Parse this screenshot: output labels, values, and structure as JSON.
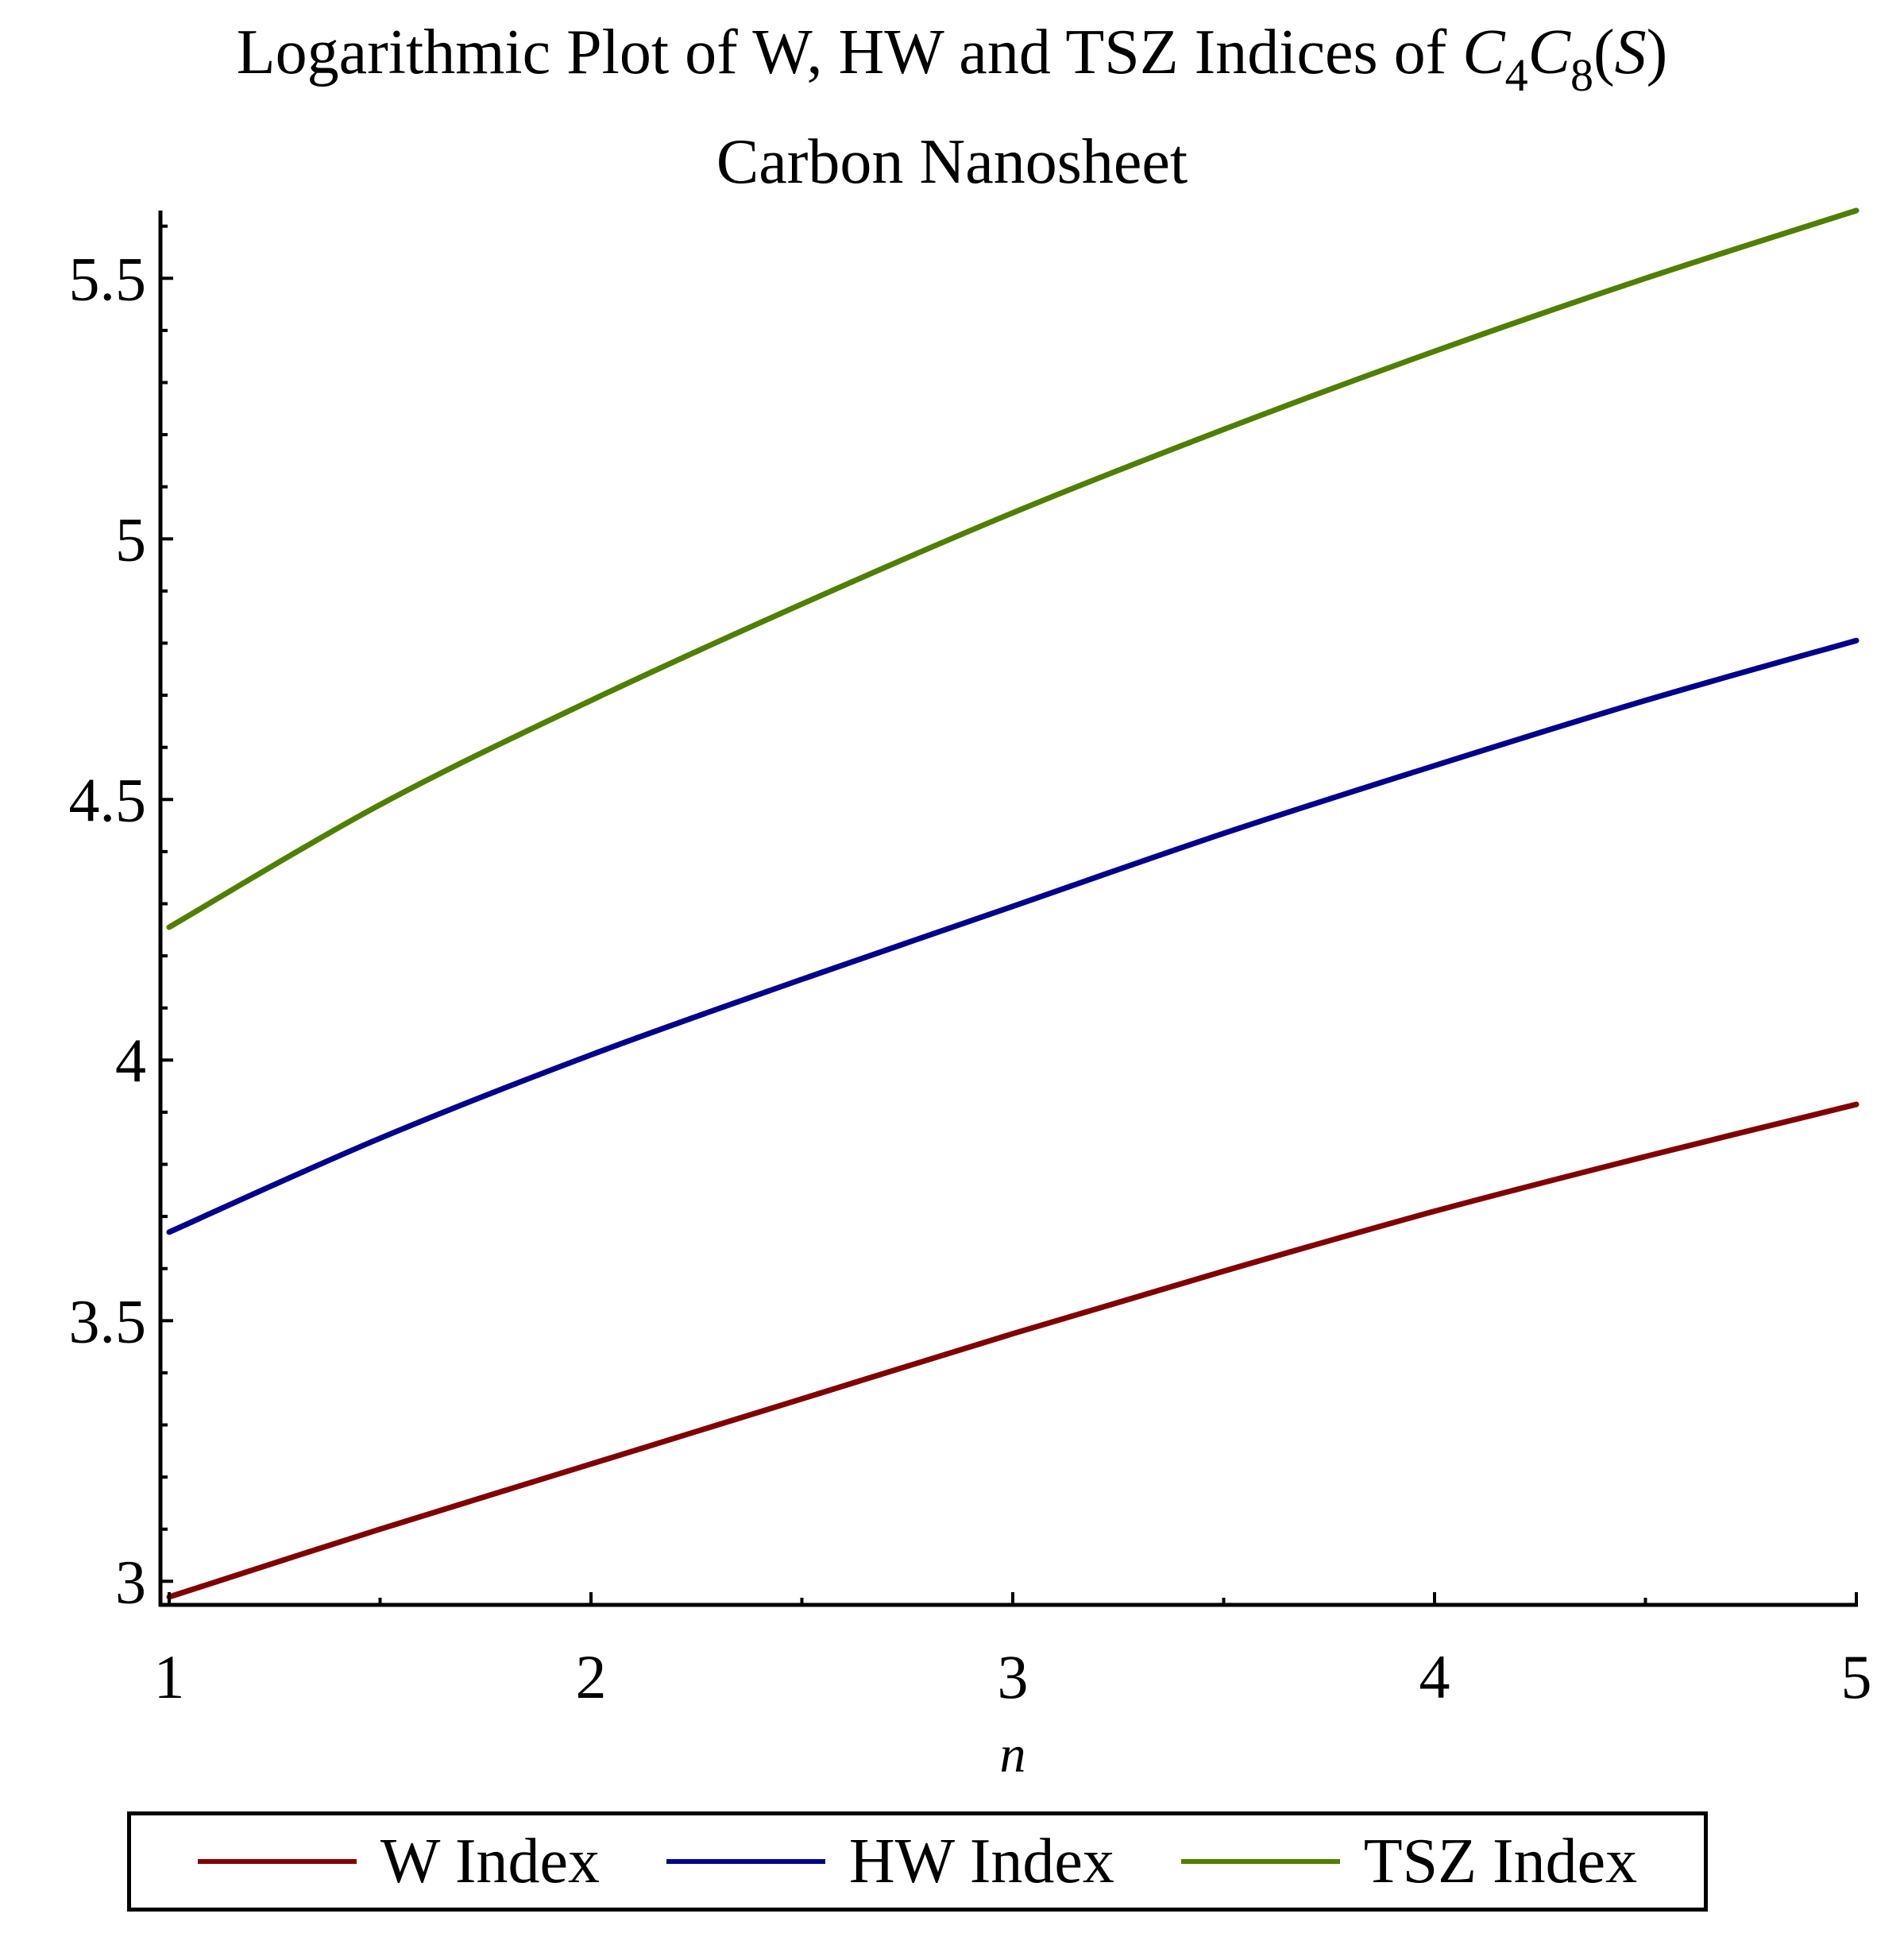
{
  "title": {
    "line1_prefix": "Logarithmic Plot of W, HW and TSZ Indices of ",
    "c1": "C",
    "sub1": "4",
    "c2": "C",
    "sub2": "8",
    "paren_open": "(",
    "s": "S",
    "paren_close": ")",
    "line2": "Carbon Nanosheet"
  },
  "chart_data": {
    "type": "line",
    "title": "Logarithmic Plot of W, HW and TSZ Indices of C4C8(S) Carbon Nanosheet",
    "xlabel": "n",
    "ylabel": "",
    "xlim": [
      1,
      5
    ],
    "ylim": [
      2.97,
      5.63
    ],
    "xticks": [
      1,
      2,
      3,
      4,
      5
    ],
    "xtick_labels": [
      "1",
      "2",
      "3",
      "4",
      "5"
    ],
    "yticks": [
      3,
      3.5,
      4,
      4.5,
      5,
      5.5
    ],
    "ytick_labels": [
      "3",
      "3.5",
      "4",
      "4.5",
      "5",
      "5.5"
    ],
    "grid": false,
    "legend_position": "bottom",
    "x": [
      1,
      1.5,
      2,
      2.5,
      3,
      3.5,
      4,
      4.5,
      5
    ],
    "series": [
      {
        "name": "W Index",
        "color": "#800000",
        "values": [
          2.97,
          3.1,
          3.225,
          3.35,
          3.475,
          3.595,
          3.71,
          3.815,
          3.915
        ]
      },
      {
        "name": "HW Index",
        "color": "#00008b",
        "values": [
          3.67,
          3.85,
          4.01,
          4.155,
          4.295,
          4.435,
          4.565,
          4.69,
          4.805
        ]
      },
      {
        "name": "TSZ Index",
        "color": "#4f7f00",
        "values": [
          4.255,
          4.49,
          4.69,
          4.875,
          5.05,
          5.21,
          5.36,
          5.5,
          5.63
        ]
      }
    ]
  }
}
